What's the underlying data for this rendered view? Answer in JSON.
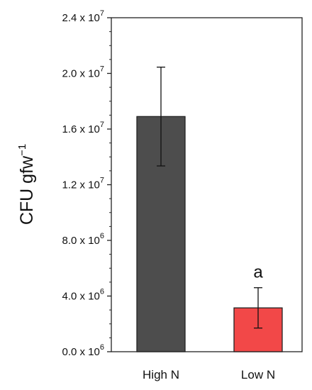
{
  "chart_data": {
    "type": "bar",
    "categories": [
      "High N",
      "Low N"
    ],
    "values": [
      16900000,
      3150000
    ],
    "error_upper": [
      20450000,
      4600000
    ],
    "error_lower": [
      13350000,
      1700000
    ],
    "colors": [
      "#4d4d4d",
      "#f24848"
    ],
    "annotations": [
      "",
      "a"
    ],
    "ylabel": {
      "base": "CFU gfw",
      "sup": "−1"
    },
    "ylim": [
      0,
      24000000
    ],
    "yticks": [
      {
        "value": 0,
        "mantissa": "0.0 x 10",
        "exp": "6"
      },
      {
        "value": 4000000,
        "mantissa": "4.0 x 10",
        "exp": "6"
      },
      {
        "value": 8000000,
        "mantissa": "8.0 x 10",
        "exp": "6"
      },
      {
        "value": 12000000,
        "mantissa": "1.2 x 10",
        "exp": "7"
      },
      {
        "value": 16000000,
        "mantissa": "1.6 x 10",
        "exp": "7"
      },
      {
        "value": 20000000,
        "mantissa": "2.0 x 10",
        "exp": "7"
      },
      {
        "value": 24000000,
        "mantissa": "2.4 x 10",
        "exp": "7"
      }
    ],
    "grid": false,
    "legend": "none"
  }
}
